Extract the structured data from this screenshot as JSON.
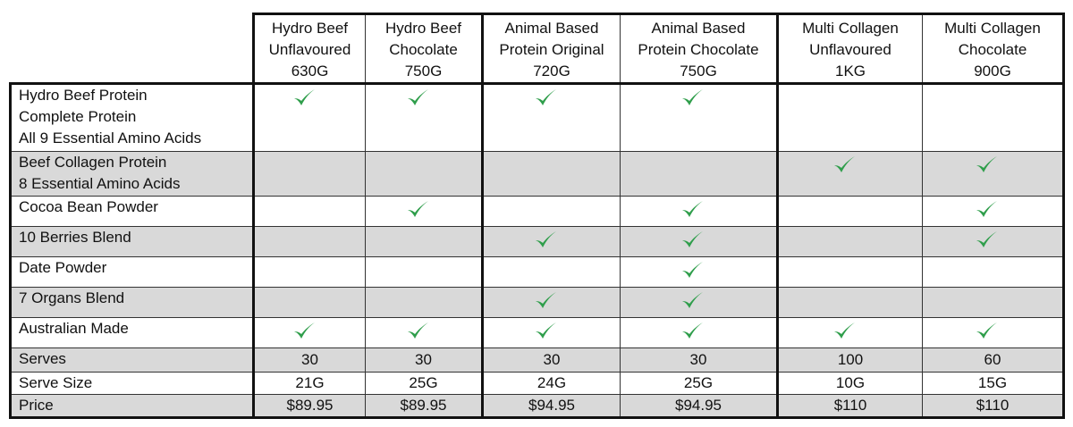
{
  "table": {
    "columns": [
      "Hydro Beef\nUnflavoured\n630G",
      "Hydro Beef\nChocolate\n750G",
      "Animal Based\nProtein Original\n720G",
      "Animal Based\nProtein Chocolate\n750G",
      "Multi Collagen\nUnflavoured\n1KG",
      "Multi Collagen\nChocolate\n900G"
    ],
    "rows": [
      {
        "label": "Hydro Beef Protein\nComplete Protein\nAll 9 Essential Amino Acids",
        "cells": [
          true,
          true,
          true,
          true,
          false,
          false
        ]
      },
      {
        "label": "Beef Collagen Protein\n8 Essential Amino Acids",
        "cells": [
          false,
          false,
          false,
          false,
          true,
          true
        ]
      },
      {
        "label": "Cocoa Bean Powder",
        "cells": [
          false,
          true,
          false,
          true,
          false,
          true
        ]
      },
      {
        "label": "10 Berries Blend",
        "cells": [
          false,
          false,
          true,
          true,
          false,
          true
        ]
      },
      {
        "label": "Date Powder",
        "cells": [
          false,
          false,
          false,
          true,
          false,
          false
        ]
      },
      {
        "label": "7 Organs Blend",
        "cells": [
          false,
          false,
          true,
          true,
          false,
          false
        ]
      },
      {
        "label": "Australian Made",
        "cells": [
          true,
          true,
          true,
          true,
          true,
          true
        ]
      },
      {
        "label": "Serves",
        "cells": [
          "30",
          "30",
          "30",
          "30",
          "100",
          "60"
        ]
      },
      {
        "label": "Serve Size",
        "cells": [
          "21G",
          "25G",
          "24G",
          "25G",
          "10G",
          "15G"
        ]
      },
      {
        "label": "Price",
        "cells": [
          "$89.95",
          "$89.95",
          "$94.95",
          "$94.95",
          "$110",
          "$110"
        ]
      }
    ]
  }
}
